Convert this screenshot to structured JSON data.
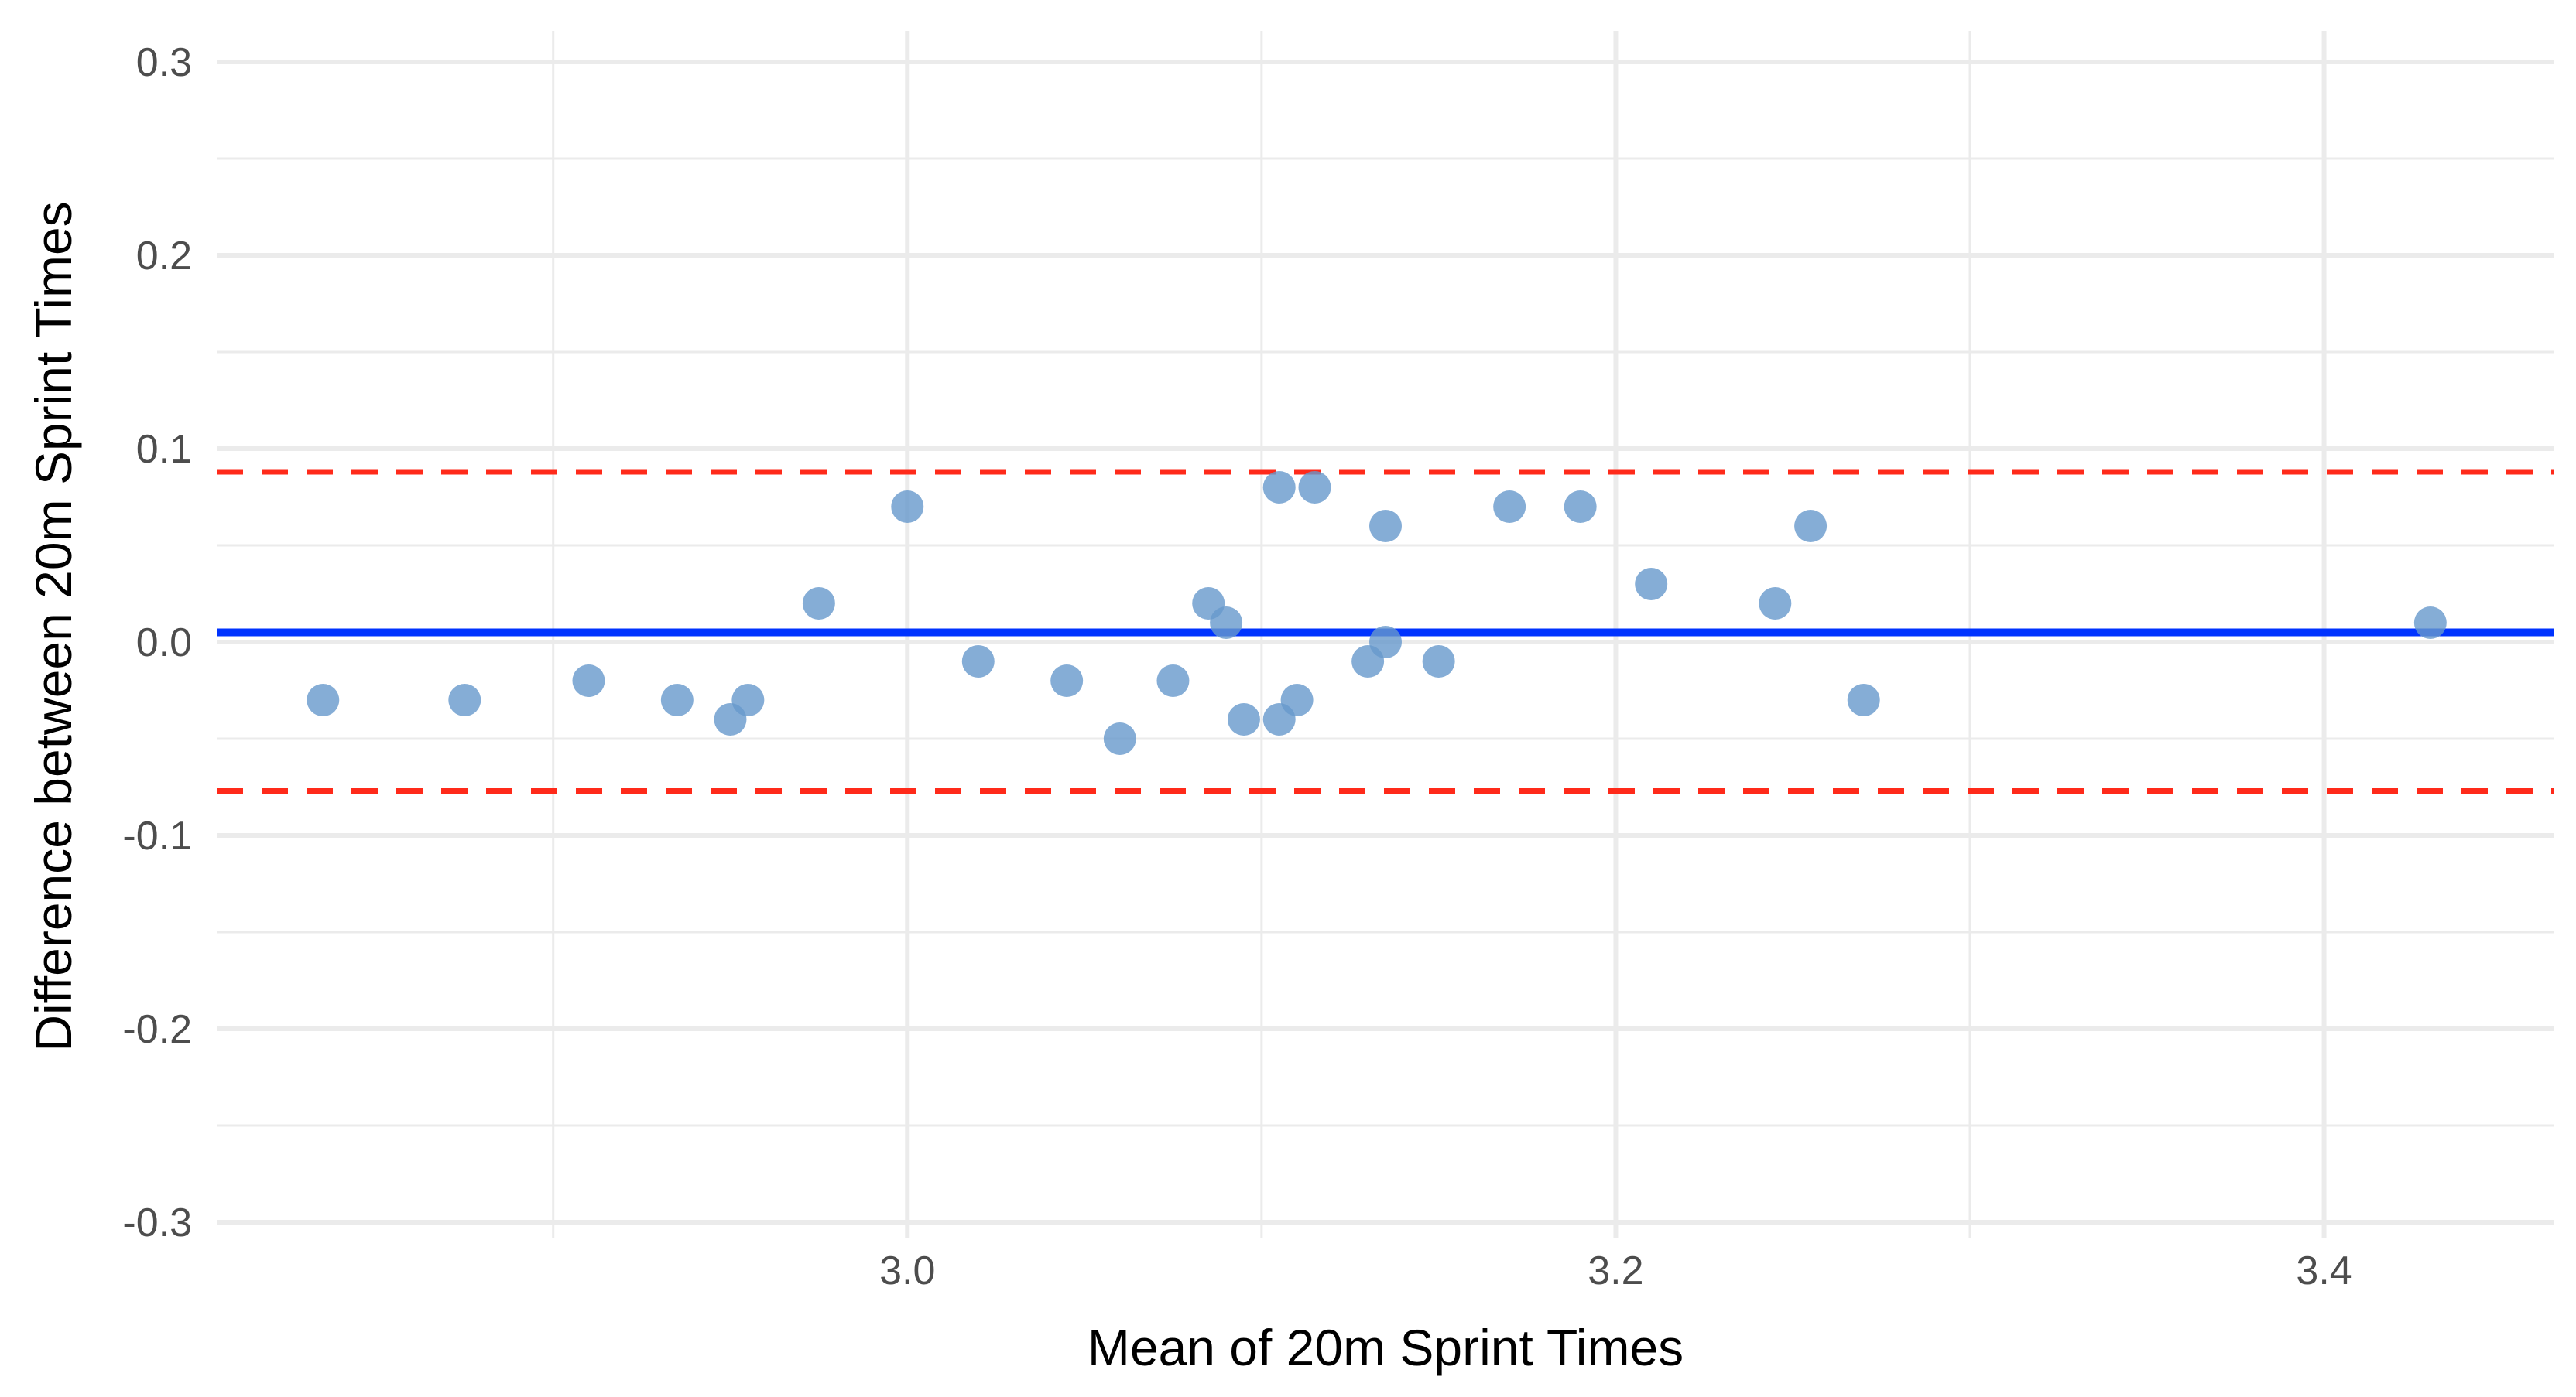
{
  "chart_data": {
    "type": "scatter",
    "title": "",
    "xlabel": "Mean of 20m Sprint Times",
    "ylabel": "Difference between 20m Sprint Times",
    "xlim": [
      2.805,
      3.465
    ],
    "ylim": [
      -0.3,
      0.3
    ],
    "x_ticks": [
      3.0,
      3.2,
      3.4
    ],
    "x_tick_labels": [
      "3.0",
      "3.2",
      "3.4"
    ],
    "y_ticks": [
      -0.3,
      -0.2,
      -0.1,
      0.0,
      0.1,
      0.2,
      0.3
    ],
    "y_tick_labels": [
      "-0.3",
      "-0.2",
      "-0.1",
      "0.0",
      "0.1",
      "0.2",
      "0.3"
    ],
    "grid": true,
    "legend": "none",
    "points": [
      {
        "x": 2.835,
        "y": -0.03
      },
      {
        "x": 2.875,
        "y": -0.03
      },
      {
        "x": 2.91,
        "y": -0.02
      },
      {
        "x": 2.935,
        "y": -0.03
      },
      {
        "x": 2.95,
        "y": -0.04
      },
      {
        "x": 2.955,
        "y": -0.03
      },
      {
        "x": 2.975,
        "y": 0.02
      },
      {
        "x": 3.0,
        "y": 0.07
      },
      {
        "x": 3.02,
        "y": -0.01
      },
      {
        "x": 3.045,
        "y": -0.02
      },
      {
        "x": 3.06,
        "y": -0.05
      },
      {
        "x": 3.075,
        "y": -0.02
      },
      {
        "x": 3.085,
        "y": 0.02
      },
      {
        "x": 3.09,
        "y": 0.01
      },
      {
        "x": 3.095,
        "y": -0.04
      },
      {
        "x": 3.105,
        "y": -0.04
      },
      {
        "x": 3.105,
        "y": 0.08
      },
      {
        "x": 3.11,
        "y": -0.03
      },
      {
        "x": 3.115,
        "y": 0.08
      },
      {
        "x": 3.13,
        "y": -0.01
      },
      {
        "x": 3.135,
        "y": 0.06
      },
      {
        "x": 3.135,
        "y": 0.0
      },
      {
        "x": 3.15,
        "y": -0.01
      },
      {
        "x": 3.17,
        "y": 0.07
      },
      {
        "x": 3.19,
        "y": 0.07
      },
      {
        "x": 3.21,
        "y": 0.03
      },
      {
        "x": 3.245,
        "y": 0.02
      },
      {
        "x": 3.255,
        "y": 0.06
      },
      {
        "x": 3.27,
        "y": -0.03
      },
      {
        "x": 3.43,
        "y": 0.01
      }
    ],
    "mean_difference": 0.005,
    "upper_limit_of_agreement": 0.088,
    "lower_limit_of_agreement": -0.077,
    "colors": {
      "points": "#6699cc",
      "mean_line": "#0033ff",
      "limit_lines": "#ff2a1a",
      "grid": "#ebebeb",
      "tick_text": "#4d4d4d",
      "axis_title": "#000000"
    }
  }
}
